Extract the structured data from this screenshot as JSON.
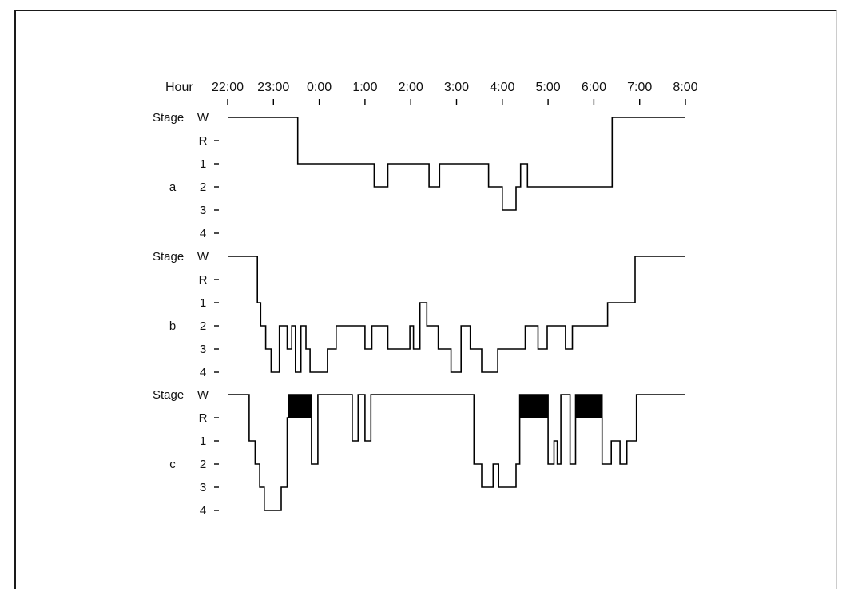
{
  "chart_data": {
    "type": "line",
    "step": true,
    "x_axis": {
      "label": "Hour",
      "ticks": [
        "22:00",
        "23:00",
        "0:00",
        "1:00",
        "2:00",
        "3:00",
        "4:00",
        "5:00",
        "6:00",
        "7:00",
        "8:00"
      ],
      "unit": "hours since 22:00",
      "range": [
        0,
        10
      ]
    },
    "y_axis": {
      "label": "Stage",
      "levels": [
        "W",
        "R",
        "1",
        "2",
        "3",
        "4"
      ]
    },
    "rem_fill_color": "#000000",
    "panels": [
      {
        "label": "a",
        "series": [
          [
            0,
            "W"
          ],
          [
            1.53,
            "W"
          ],
          [
            1.53,
            "1"
          ],
          [
            3.2,
            "1"
          ],
          [
            3.2,
            "2"
          ],
          [
            3.5,
            "2"
          ],
          [
            3.5,
            "1"
          ],
          [
            4.4,
            "1"
          ],
          [
            4.4,
            "2"
          ],
          [
            4.63,
            "2"
          ],
          [
            4.63,
            "1"
          ],
          [
            5.7,
            "1"
          ],
          [
            5.7,
            "2"
          ],
          [
            6.0,
            "2"
          ],
          [
            6.0,
            "3"
          ],
          [
            6.3,
            "3"
          ],
          [
            6.3,
            "2"
          ],
          [
            6.4,
            "2"
          ],
          [
            6.4,
            "1"
          ],
          [
            6.55,
            "1"
          ],
          [
            6.55,
            "2"
          ],
          [
            8.4,
            "2"
          ],
          [
            8.4,
            "W"
          ],
          [
            10,
            "W"
          ]
        ],
        "rem_blocks": []
      },
      {
        "label": "b",
        "series": [
          [
            0,
            "W"
          ],
          [
            0.65,
            "W"
          ],
          [
            0.65,
            "1"
          ],
          [
            0.72,
            "1"
          ],
          [
            0.72,
            "2"
          ],
          [
            0.83,
            "2"
          ],
          [
            0.83,
            "3"
          ],
          [
            0.95,
            "3"
          ],
          [
            0.95,
            "4"
          ],
          [
            1.13,
            "4"
          ],
          [
            1.13,
            "2"
          ],
          [
            1.3,
            "2"
          ],
          [
            1.3,
            "3"
          ],
          [
            1.4,
            "3"
          ],
          [
            1.4,
            "2"
          ],
          [
            1.48,
            "2"
          ],
          [
            1.48,
            "4"
          ],
          [
            1.6,
            "4"
          ],
          [
            1.6,
            "2"
          ],
          [
            1.71,
            "2"
          ],
          [
            1.71,
            "3"
          ],
          [
            1.8,
            "3"
          ],
          [
            1.8,
            "4"
          ],
          [
            2.18,
            "4"
          ],
          [
            2.18,
            "3"
          ],
          [
            2.37,
            "3"
          ],
          [
            2.37,
            "2"
          ],
          [
            3.0,
            "2"
          ],
          [
            3.0,
            "3"
          ],
          [
            3.15,
            "3"
          ],
          [
            3.15,
            "2"
          ],
          [
            3.5,
            "2"
          ],
          [
            3.5,
            "3"
          ],
          [
            3.98,
            "3"
          ],
          [
            3.98,
            "2"
          ],
          [
            4.06,
            "2"
          ],
          [
            4.06,
            "3"
          ],
          [
            4.2,
            "3"
          ],
          [
            4.2,
            "1"
          ],
          [
            4.35,
            "1"
          ],
          [
            4.35,
            "2"
          ],
          [
            4.6,
            "2"
          ],
          [
            4.6,
            "3"
          ],
          [
            4.88,
            "3"
          ],
          [
            4.88,
            "4"
          ],
          [
            5.1,
            "4"
          ],
          [
            5.1,
            "2"
          ],
          [
            5.3,
            "2"
          ],
          [
            5.3,
            "3"
          ],
          [
            5.55,
            "3"
          ],
          [
            5.55,
            "4"
          ],
          [
            5.9,
            "4"
          ],
          [
            5.9,
            "3"
          ],
          [
            6.5,
            "3"
          ],
          [
            6.5,
            "2"
          ],
          [
            6.78,
            "2"
          ],
          [
            6.78,
            "3"
          ],
          [
            6.98,
            "3"
          ],
          [
            6.98,
            "2"
          ],
          [
            7.38,
            "2"
          ],
          [
            7.38,
            "3"
          ],
          [
            7.53,
            "3"
          ],
          [
            7.53,
            "2"
          ],
          [
            8.3,
            "2"
          ],
          [
            8.3,
            "1"
          ],
          [
            8.9,
            "1"
          ],
          [
            8.9,
            "W"
          ],
          [
            10,
            "W"
          ]
        ],
        "rem_blocks": []
      },
      {
        "label": "c",
        "series": [
          [
            0,
            "W"
          ],
          [
            0.47,
            "W"
          ],
          [
            0.47,
            "1"
          ],
          [
            0.6,
            "1"
          ],
          [
            0.6,
            "2"
          ],
          [
            0.7,
            "2"
          ],
          [
            0.7,
            "3"
          ],
          [
            0.8,
            "3"
          ],
          [
            0.8,
            "4"
          ],
          [
            1.17,
            "4"
          ],
          [
            1.17,
            "3"
          ],
          [
            1.3,
            "3"
          ],
          [
            1.3,
            "R"
          ],
          [
            1.34,
            "R"
          ],
          [
            1.34,
            "W"
          ],
          [
            1.83,
            "W"
          ],
          [
            1.83,
            "2"
          ],
          [
            1.97,
            "2"
          ],
          [
            1.97,
            "W"
          ],
          [
            2.72,
            "W"
          ],
          [
            2.72,
            "1"
          ],
          [
            2.85,
            "1"
          ],
          [
            2.85,
            "W"
          ],
          [
            3.0,
            "W"
          ],
          [
            3.0,
            "1"
          ],
          [
            3.13,
            "1"
          ],
          [
            3.13,
            "W"
          ],
          [
            5.38,
            "W"
          ],
          [
            5.38,
            "2"
          ],
          [
            5.55,
            "2"
          ],
          [
            5.55,
            "3"
          ],
          [
            5.8,
            "3"
          ],
          [
            5.8,
            "2"
          ],
          [
            5.92,
            "2"
          ],
          [
            5.92,
            "3"
          ],
          [
            6.3,
            "3"
          ],
          [
            6.3,
            "2"
          ],
          [
            6.38,
            "2"
          ],
          [
            6.38,
            "W"
          ],
          [
            7.0,
            "W"
          ],
          [
            7.0,
            "2"
          ],
          [
            7.13,
            "2"
          ],
          [
            7.13,
            "1"
          ],
          [
            7.2,
            "1"
          ],
          [
            7.2,
            "2"
          ],
          [
            7.28,
            "2"
          ],
          [
            7.28,
            "W"
          ],
          [
            7.48,
            "W"
          ],
          [
            7.48,
            "2"
          ],
          [
            7.6,
            "2"
          ],
          [
            7.6,
            "W"
          ],
          [
            8.18,
            "W"
          ],
          [
            8.18,
            "2"
          ],
          [
            8.38,
            "2"
          ],
          [
            8.38,
            "1"
          ],
          [
            8.57,
            "1"
          ],
          [
            8.57,
            "2"
          ],
          [
            8.72,
            "2"
          ],
          [
            8.72,
            "1"
          ],
          [
            8.93,
            "1"
          ],
          [
            8.93,
            "W"
          ],
          [
            10,
            "W"
          ]
        ],
        "rem_blocks": [
          [
            1.34,
            1.83
          ],
          [
            6.38,
            7.0
          ],
          [
            7.6,
            8.18
          ]
        ]
      }
    ]
  }
}
